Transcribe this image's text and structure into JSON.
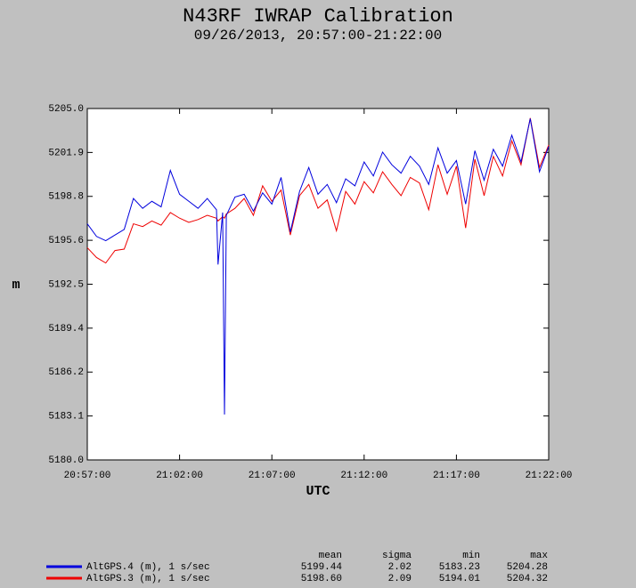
{
  "chart_data": {
    "type": "line",
    "title": "N43RF IWRAP Calibration",
    "subtitle": "09/26/2013, 20:57:00-21:22:00",
    "x_label": "UTC",
    "y_label": "m",
    "x": [
      "20:57:00",
      "20:57:30",
      "20:58:00",
      "20:58:30",
      "20:59:00",
      "20:59:30",
      "21:00:00",
      "21:00:30",
      "21:01:00",
      "21:01:30",
      "21:02:00",
      "21:02:30",
      "21:03:00",
      "21:03:30",
      "21:04:00",
      "21:04:05",
      "21:04:20",
      "21:04:26",
      "21:04:32",
      "21:05:00",
      "21:05:30",
      "21:06:00",
      "21:06:30",
      "21:07:00",
      "21:07:30",
      "21:08:00",
      "21:08:30",
      "21:09:00",
      "21:09:30",
      "21:10:00",
      "21:10:30",
      "21:11:00",
      "21:11:30",
      "21:12:00",
      "21:12:30",
      "21:13:00",
      "21:13:30",
      "21:14:00",
      "21:14:30",
      "21:15:00",
      "21:15:30",
      "21:16:00",
      "21:16:30",
      "21:17:00",
      "21:17:30",
      "21:18:00",
      "21:18:30",
      "21:19:00",
      "21:19:30",
      "21:20:00",
      "21:20:30",
      "21:21:00",
      "21:21:30",
      "21:22:00"
    ],
    "xlim": [
      "20:57:00",
      "21:22:00"
    ],
    "xticks": [
      "20:57:00",
      "21:02:00",
      "21:07:00",
      "21:12:00",
      "21:17:00",
      "21:22:00"
    ],
    "ylim": [
      5180,
      5205
    ],
    "yticks": [
      {
        "value": 5180,
        "label": "5180.0"
      },
      {
        "value": 5183.125,
        "label": "5183.1"
      },
      {
        "value": 5186.25,
        "label": "5186.2"
      },
      {
        "value": 5189.375,
        "label": "5189.4"
      },
      {
        "value": 5192.5,
        "label": "5192.5"
      },
      {
        "value": 5195.625,
        "label": "5195.6"
      },
      {
        "value": 5198.75,
        "label": "5198.8"
      },
      {
        "value": 5201.875,
        "label": "5201.9"
      },
      {
        "value": 5205,
        "label": "5205.0"
      }
    ],
    "stats_header": [
      "mean",
      "sigma",
      "min",
      "max"
    ],
    "series": [
      {
        "name": "AltGPS.4 (m), 1 s/sec",
        "color": "#0000dd",
        "stats": [
          "5199.44",
          "2.02",
          "5183.23",
          "5204.28"
        ],
        "values": [
          5196.8,
          5195.9,
          5195.6,
          5196.0,
          5196.4,
          5198.6,
          5197.9,
          5198.4,
          5198.0,
          5200.6,
          5198.9,
          5198.4,
          5197.9,
          5198.6,
          5197.8,
          5193.9,
          5197.6,
          5183.23,
          5197.4,
          5198.7,
          5198.9,
          5197.7,
          5199.0,
          5198.2,
          5200.1,
          5196.2,
          5199.1,
          5200.8,
          5198.9,
          5199.6,
          5198.3,
          5200.0,
          5199.5,
          5201.2,
          5200.2,
          5201.9,
          5201.0,
          5200.4,
          5201.6,
          5200.9,
          5199.6,
          5202.2,
          5200.4,
          5201.3,
          5198.2,
          5202.0,
          5199.9,
          5202.1,
          5200.9,
          5203.1,
          5201.2,
          5204.28,
          5200.5,
          5202.3
        ]
      },
      {
        "name": "AltGPS.3 (m), 1 s/sec",
        "color": "#ee0000",
        "stats": [
          "5198.60",
          "2.09",
          "5194.01",
          "5204.32"
        ],
        "values": [
          5195.1,
          5194.4,
          5194.01,
          5194.9,
          5195.0,
          5196.8,
          5196.6,
          5197.0,
          5196.7,
          5197.6,
          5197.2,
          5196.9,
          5197.1,
          5197.4,
          5197.2,
          5197.0,
          5197.3,
          5197.2,
          5197.5,
          5197.9,
          5198.6,
          5197.4,
          5199.5,
          5198.4,
          5199.2,
          5196.0,
          5198.8,
          5199.6,
          5197.9,
          5198.5,
          5196.3,
          5199.1,
          5198.2,
          5199.8,
          5199.0,
          5200.5,
          5199.6,
          5198.8,
          5200.1,
          5199.7,
          5197.8,
          5201.0,
          5198.9,
          5200.9,
          5196.5,
          5201.4,
          5198.8,
          5201.6,
          5200.2,
          5202.7,
          5201.0,
          5204.32,
          5200.8,
          5202.4
        ]
      }
    ]
  }
}
